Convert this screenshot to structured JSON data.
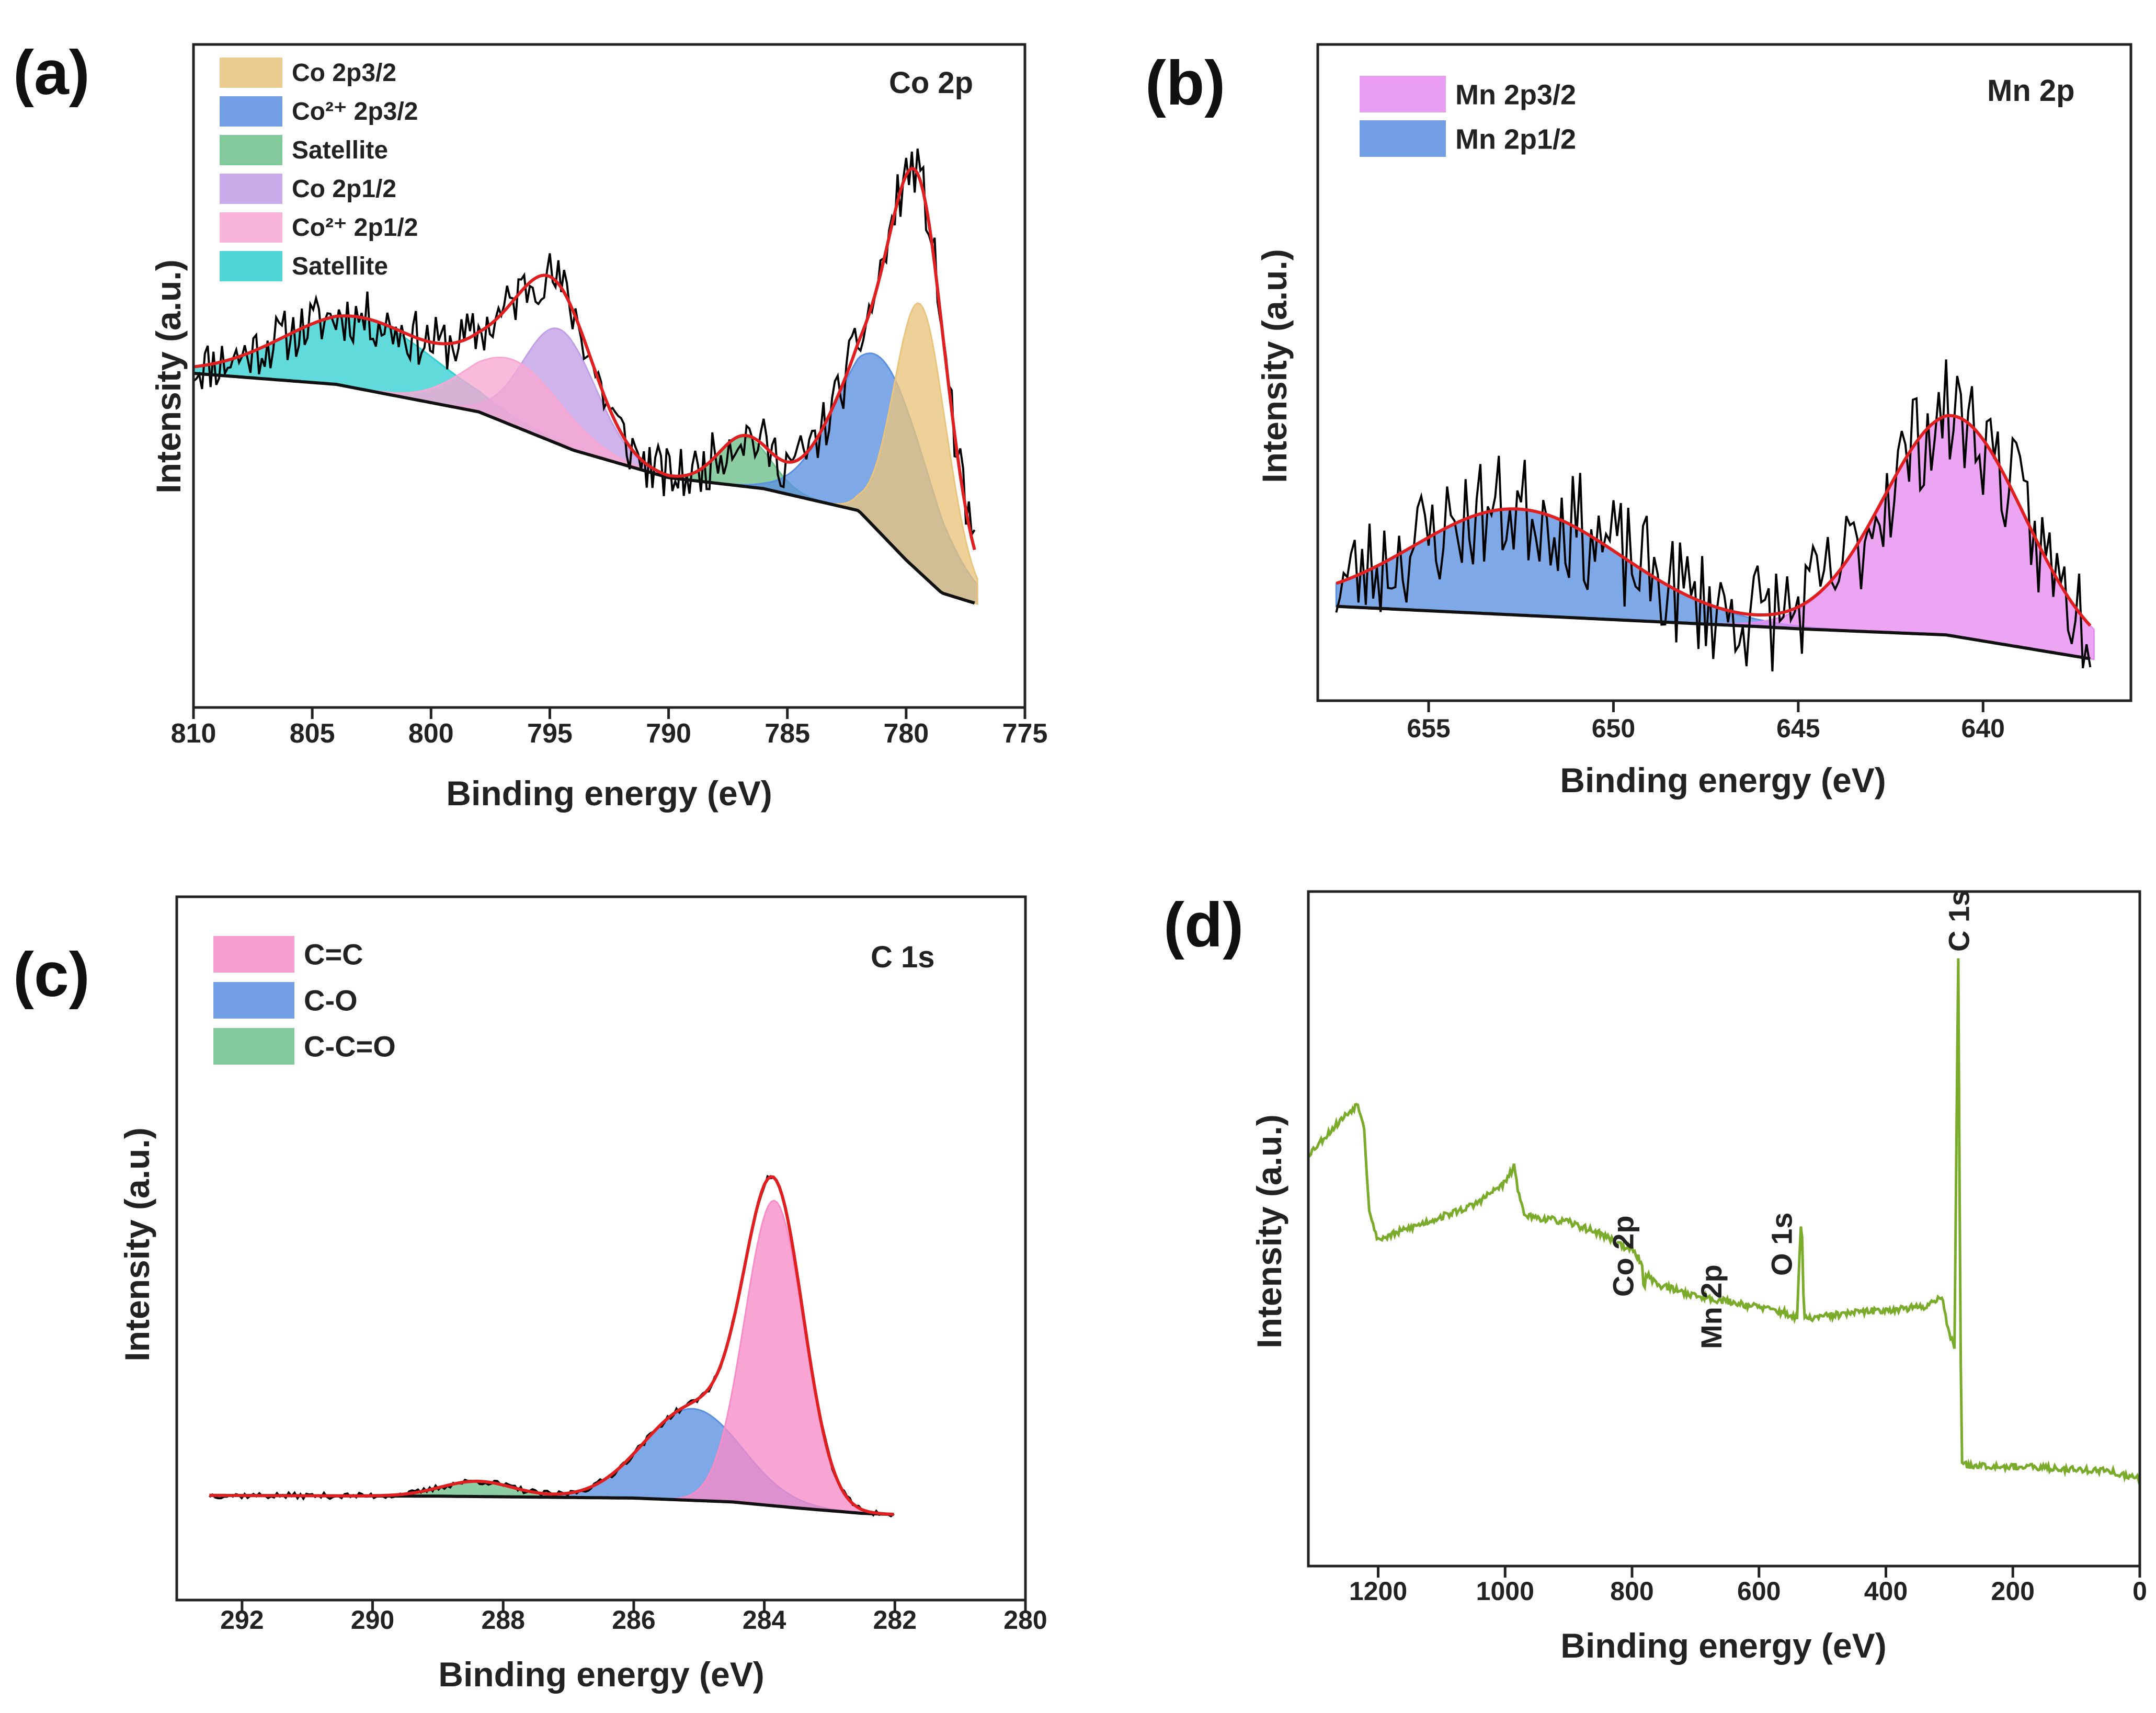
{
  "chart_data": [
    {
      "panel": "(a)",
      "type": "line",
      "title": "Co 2p",
      "xlabel": "Binding energy (eV)",
      "ylabel": "Intensity (a.u.)",
      "xlim": [
        810,
        775
      ],
      "ylim": [
        0,
        100
      ],
      "xticks": [
        810,
        805,
        800,
        795,
        790,
        785,
        780,
        775
      ],
      "legend": [
        {
          "label": "Co 2p3/2",
          "color": "#e8c47c"
        },
        {
          "label": "Co²⁺ 2p3/2",
          "color": "#5b8fe0"
        },
        {
          "label": "Satellite",
          "color": "#6cbf8a"
        },
        {
          "label": "Co 2p1/2",
          "color": "#c29ee6"
        },
        {
          "label": "Co²⁺ 2p1/2",
          "color": "#f7a8d2"
        },
        {
          "label": "Satellite",
          "color": "#33cfd0"
        }
      ],
      "background": {
        "x": [
          810,
          804,
          798,
          794,
          790,
          786,
          782,
          780,
          778.5,
          777
        ],
        "y": [
          52,
          50,
          45,
          38,
          33,
          31,
          27,
          18,
          12,
          10
        ]
      },
      "components": [
        {
          "name": "Satellite",
          "color": "#33cfd0",
          "center": 803,
          "height": 13,
          "width": 3.2
        },
        {
          "name": "Co 2p1/2",
          "color": "#c29ee6",
          "center": 794.6,
          "height": 21,
          "width": 1.5
        },
        {
          "name": "Co²⁺ 2p1/2",
          "color": "#f7a8d2",
          "center": 796.5,
          "height": 12,
          "width": 2.0
        },
        {
          "name": "Satellite",
          "color": "#6cbf8a",
          "center": 786.8,
          "height": 9,
          "width": 1.1
        },
        {
          "name": "Co²⁺ 2p3/2",
          "color": "#5b8fe0",
          "center": 781,
          "height": 32,
          "width": 1.9
        },
        {
          "name": "Co 2p3/2",
          "color": "#e8c47c",
          "center": 779.4,
          "height": 49,
          "width": 1.1
        }
      ],
      "envelope_color": "#e02020",
      "raw_color": "#000000",
      "raw_noise": 5
    },
    {
      "panel": "(b)",
      "type": "line",
      "title": "Mn 2p",
      "xlabel": "Binding energy (eV)",
      "ylabel": "Intensity (a.u.)",
      "xlim": [
        658,
        636
      ],
      "ylim": [
        0,
        100
      ],
      "xticks": [
        655,
        650,
        645,
        640
      ],
      "legend": [
        {
          "label": "Mn 2p3/2",
          "color": "#e58cf0"
        },
        {
          "label": "Mn 2p1/2",
          "color": "#5b8fe0"
        }
      ],
      "background": {
        "x": [
          657.5,
          646,
          645,
          641,
          637
        ],
        "y": [
          18,
          13,
          12.5,
          11,
          5
        ]
      },
      "components": [
        {
          "name": "Mn 2p1/2",
          "color": "#5b8fe0",
          "center": 652.6,
          "height": 26,
          "width": 2.8
        },
        {
          "name": "Mn 2p3/2",
          "color": "#e58cf0",
          "center": 640.8,
          "height": 54,
          "width": 1.9
        }
      ],
      "envelope_color": "#e02020",
      "raw_color": "#000000",
      "raw_noise": 14
    },
    {
      "panel": "(c)",
      "type": "line",
      "title": "C 1s",
      "xlabel": "Binding energy (eV)",
      "ylabel": "Intensity (a.u.)",
      "xlim": [
        293,
        280
      ],
      "ylim": [
        0,
        100
      ],
      "xticks": [
        292,
        290,
        288,
        286,
        284,
        282,
        280
      ],
      "legend": [
        {
          "label": "C=C",
          "color": "#f78cc8"
        },
        {
          "label": "C-O",
          "color": "#5b8fe0"
        },
        {
          "label": "C-C=O",
          "color": "#6cbf8a"
        }
      ],
      "background": {
        "x": [
          292.5,
          289,
          286,
          284.5,
          283.5,
          282.5,
          282
        ],
        "y": [
          5.5,
          5.3,
          4.8,
          3.8,
          2.2,
          0.8,
          0.5
        ]
      },
      "components": [
        {
          "name": "C-C=O",
          "color": "#6cbf8a",
          "center": 288.4,
          "height": 4,
          "width": 0.55
        },
        {
          "name": "C-O",
          "color": "#5b8fe0",
          "center": 285.1,
          "height": 24,
          "width": 0.75
        },
        {
          "name": "C=C",
          "color": "#f78cc8",
          "center": 283.85,
          "height": 80,
          "width": 0.45
        }
      ],
      "envelope_color": "#e02020",
      "raw_color": "#000000",
      "raw_noise": 0.8
    },
    {
      "panel": "(d)",
      "type": "line",
      "title": "",
      "xlabel": "Binding energy (eV)",
      "ylabel": "Intensity (a.u.)",
      "xlim": [
        1310,
        0
      ],
      "ylim": [
        0,
        100
      ],
      "xticks": [
        1200,
        1000,
        800,
        600,
        400,
        200,
        0
      ],
      "line_color": "#7aab2a",
      "series": {
        "x": [
          1310,
          1285,
          1260,
          1232,
          1222,
          1215,
          1205,
          1198,
          1150,
          1100,
          1050,
          1000,
          985,
          979,
          972,
          960,
          900,
          850,
          800,
          785,
          781,
          778,
          760,
          700,
          650,
          600,
          560,
          540,
          533,
          529,
          520,
          450,
          400,
          340,
          312,
          300,
          292,
          286,
          284,
          281,
          276,
          250,
          150,
          50,
          20,
          0
        ],
        "y": [
          65,
          68,
          71,
          74,
          70,
          56,
          51,
          50,
          52,
          54,
          56,
          60,
          63,
          58,
          55,
          54,
          53,
          51,
          48,
          46,
          41,
          44,
          42,
          40,
          39,
          38,
          37,
          36,
          55,
          36,
          36,
          37,
          37.5,
          38,
          40,
          33,
          31,
          100,
          60,
          11,
          10,
          10,
          9.5,
          9,
          8,
          7.5
        ]
      },
      "annotations": [
        {
          "label": "Co 2p",
          "x": 780
        },
        {
          "label": "Mn 2p",
          "x": 641
        },
        {
          "label": "O 1s",
          "x": 530
        },
        {
          "label": "C 1s",
          "x": 284
        }
      ]
    }
  ]
}
